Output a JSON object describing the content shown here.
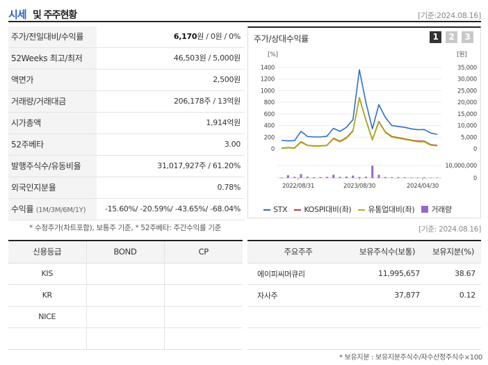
{
  "header": {
    "title_blue": "시세",
    "title_rest": "및 주주현황",
    "asof": "[기준:2024.08.16]"
  },
  "quote": [
    {
      "label": "주가/전일대비/수익률",
      "value_bold": "6,170",
      "value_rest": "원 / 0원 / 0%"
    },
    {
      "label": "52Weeks 최고/최저",
      "value": "46,503원 / 5,000원"
    },
    {
      "label": "액면가",
      "value": "2,500원"
    },
    {
      "label": "거래량/거래대금",
      "value": "206,178주 / 13억원"
    },
    {
      "label": "시가총액",
      "value": "1,914억원"
    },
    {
      "label": "52주베타",
      "value": "3.00"
    },
    {
      "label": "발행주식수/유동비율",
      "value": "31,017,927주 / 61.20%"
    },
    {
      "label": "외국인지분율",
      "value": "0.78%"
    }
  ],
  "returns": {
    "label": "수익률",
    "period": "(1M/3M/6M/1Y)",
    "value": "-15.60%/ -20.59%/ -43.65%/ -68.04%"
  },
  "note1": "* 수정주가(차트포함), 보통주 기준, * 52주베타: 주간수익률 기준",
  "chart": {
    "title": "주가/상대수익률",
    "buttons": [
      "1",
      "2",
      "3"
    ],
    "unit_left": "[%]",
    "unit_right": "[원]",
    "legend": [
      {
        "label": "STX",
        "color": "#2a6fc9"
      },
      {
        "label": "KOSPI대비(좌)",
        "color": "#c0392b"
      },
      {
        "label": "유통업대비(좌)",
        "color": "#a6b51a"
      },
      {
        "label": "거래량",
        "color": "#9966cc"
      }
    ]
  },
  "chart_data": {
    "type": "line",
    "x_ticks": [
      "2022/08/31",
      "2023/08/30",
      "2024/04/30"
    ],
    "y_left_ticks": [
      "1400",
      "1200",
      "1000",
      "800",
      "600",
      "400",
      "200",
      "0"
    ],
    "y_right_ticks": [
      "35,000",
      "30,000",
      "25,000",
      "20,000",
      "15,000",
      "10,000",
      "5,000",
      "0"
    ],
    "vol_ticks": [
      "10,000,000",
      "0"
    ],
    "ylim_left": [
      0,
      1400
    ],
    "ylim_right": [
      0,
      35000
    ],
    "vol_max": 10000000,
    "series": [
      {
        "name": "STX",
        "color": "#2a6fc9",
        "axis": "right",
        "values": [
          3600,
          3400,
          3500,
          7500,
          5300,
          5100,
          5100,
          5400,
          8800,
          7500,
          9200,
          12500,
          34000,
          20000,
          8600,
          19000,
          13500,
          10000,
          9600,
          9200,
          8600,
          8200,
          8300,
          6800,
          6170
        ]
      },
      {
        "name": "KOSPI대비(좌)",
        "color": "#c0392b",
        "axis": "left",
        "values": [
          10,
          20,
          15,
          120,
          60,
          50,
          50,
          60,
          180,
          130,
          190,
          310,
          880,
          500,
          160,
          470,
          290,
          210,
          190,
          170,
          150,
          130,
          130,
          70,
          60
        ]
      },
      {
        "name": "유통업대비(좌)",
        "color": "#a6b51a",
        "axis": "left",
        "values": [
          5,
          15,
          10,
          110,
          55,
          45,
          45,
          55,
          170,
          120,
          180,
          300,
          870,
          490,
          150,
          460,
          280,
          200,
          180,
          160,
          140,
          120,
          120,
          60,
          50
        ]
      }
    ],
    "volume": [
      400000,
      2200000,
      900000,
      3100000,
      1000000,
      600000,
      700000,
      900000,
      2600000,
      900000,
      1100000,
      1900000,
      800000,
      1000000,
      9800000,
      2600000,
      800000,
      600000,
      700000,
      500000,
      400000,
      400000,
      500000,
      300000,
      200000
    ]
  },
  "asof2": "[기준: 2024.08.16]",
  "credit": {
    "headers": [
      "신용등급",
      "BOND",
      "CP"
    ],
    "rows": [
      [
        "KIS",
        "",
        ""
      ],
      [
        "KR",
        "",
        ""
      ],
      [
        "NICE",
        "",
        ""
      ],
      [
        "",
        "",
        ""
      ]
    ]
  },
  "holders": {
    "headers": [
      "주요주주",
      "보유주식수(보통)",
      "보유지분(%)"
    ],
    "rows": [
      [
        "에이피씨머큐리",
        "11,995,657",
        "38.67"
      ],
      [
        "자사주",
        "37,877",
        "0.12"
      ],
      [
        "",
        "",
        ""
      ],
      [
        "",
        "",
        ""
      ]
    ]
  },
  "note2": "* 보유지분 : 보유지분주식수/자수산정주식수×100"
}
